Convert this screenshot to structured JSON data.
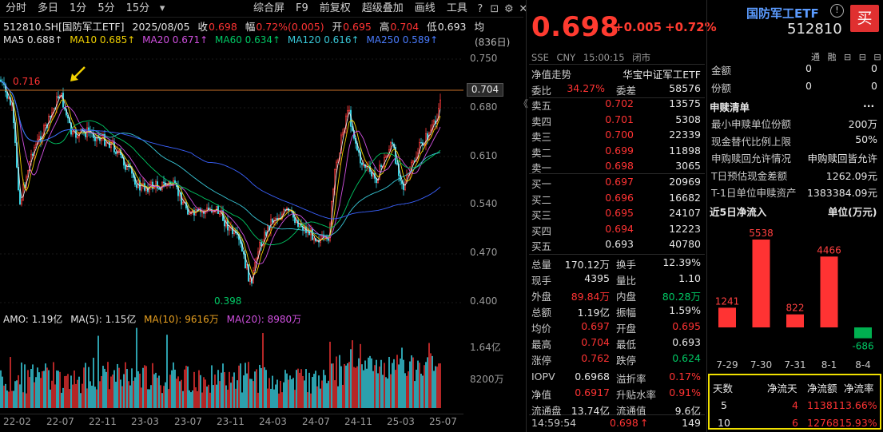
{
  "toolbar": {
    "left": [
      "分时",
      "多日",
      "1分",
      "5分",
      "15分"
    ],
    "dropdown_icon": "chevron-down-icon",
    "right": [
      "综合屏",
      "F9",
      "前复权",
      "超级叠加",
      "画线",
      "工具"
    ]
  },
  "info": {
    "code_name": "512810.SH[国防军工ETF]",
    "date": "2025/08/05",
    "close_label": "收",
    "close": "0.698",
    "change_label": "幅",
    "change": "0.72%(0.005)",
    "open_label": "开",
    "open": "0.695",
    "high_label": "高",
    "high": "0.704",
    "low_label": "低",
    "low": "0.693",
    "avg_label": "均"
  },
  "ma": {
    "ma5": "MA5 0.688↑",
    "ma10": "MA10 0.685↑",
    "ma20": "MA20 0.671↑",
    "ma60": "MA60 0.634↑",
    "ma120": "MA120 0.616↑",
    "ma250": "MA250 0.589↑",
    "page": "(836日)"
  },
  "yaxis_price": [
    "0.750",
    "0.680",
    "0.610",
    "0.540",
    "0.470",
    "0.400"
  ],
  "current_price_tag": "0.704",
  "high_marker": "0.716",
  "low_marker": "0.398",
  "amo": {
    "amo": "AMO: 1.19亿",
    "ma5": "MA(5): 1.15亿",
    "ma10": "MA(10): 9616万",
    "ma20": "MA(20): 8980万"
  },
  "yaxis_vol": [
    "1.64亿",
    "8200万"
  ],
  "xaxis": [
    "22-02",
    "22-07",
    "22-11",
    "23-03",
    "23-07",
    "23-11",
    "24-03",
    "24-07",
    "24-11",
    "25-03",
    "25-07"
  ],
  "quote": {
    "price": "0.698",
    "change": "+0.005",
    "change_pct": "+0.72%",
    "sub": [
      "SSE",
      "CNY",
      "15:00:15",
      "闭市"
    ],
    "nav_trend_label": "净值走势",
    "index_label": "华宝中证军工ETF",
    "weibi_label": "委比",
    "weibi": "34.27%",
    "weicha_label": "委差",
    "weicha": "58576"
  },
  "asks": [
    {
      "label": "卖五",
      "price": "0.702",
      "vol": "13575"
    },
    {
      "label": "卖四",
      "price": "0.701",
      "vol": "5308"
    },
    {
      "label": "卖三",
      "price": "0.700",
      "vol": "22339"
    },
    {
      "label": "卖二",
      "price": "0.699",
      "vol": "11898"
    },
    {
      "label": "卖一",
      "price": "0.698",
      "vol": "3065"
    }
  ],
  "bids": [
    {
      "label": "买一",
      "price": "0.697",
      "vol": "20969"
    },
    {
      "label": "买二",
      "price": "0.696",
      "vol": "16682"
    },
    {
      "label": "买三",
      "price": "0.695",
      "vol": "24107"
    },
    {
      "label": "买四",
      "price": "0.694",
      "vol": "12223"
    },
    {
      "label": "买五",
      "price": "0.693",
      "vol": "40780"
    }
  ],
  "stats": [
    {
      "l1": "总量",
      "v1": "170.12万",
      "l2": "换手",
      "v2": "12.39%"
    },
    {
      "l1": "现手",
      "v1": "4395",
      "l2": "量比",
      "v2": "1.10"
    },
    {
      "l1": "外盘",
      "v1": "89.84万",
      "l2": "内盘",
      "v2": "80.28万"
    },
    {
      "l1": "总额",
      "v1": "1.19亿",
      "l2": "振幅",
      "v2": "1.59%"
    },
    {
      "l1": "均价",
      "v1": "0.697",
      "l2": "开盘",
      "v2": "0.695"
    },
    {
      "l1": "最高",
      "v1": "0.704",
      "l2": "最低",
      "v2": "0.693"
    },
    {
      "l1": "涨停",
      "v1": "0.762",
      "l2": "跌停",
      "v2": "0.624"
    },
    {
      "l1": "IOPV",
      "v1": "0.6968",
      "l2": "溢折率",
      "v2": "0.17%"
    },
    {
      "l1": "净值",
      "v1": "0.6917",
      "l2": "升贴水率",
      "v2": "0.91%"
    },
    {
      "l1": "流通盘",
      "v1": "13.74亿",
      "l2": "流通值",
      "v2": "9.6亿"
    }
  ],
  "last_tick": {
    "time": "14:59:54",
    "price": "0.698",
    "arrow": "↑",
    "vol": "149"
  },
  "side_tab": "《",
  "etf": {
    "name": "国防军工ETF",
    "code": "512810",
    "buy_label": "买",
    "tool_icons": "通 融 ⊟ ⊟ ⊟"
  },
  "amount_rows": [
    {
      "label": "金额",
      "a": "0",
      "b": "0"
    },
    {
      "label": "份额",
      "a": "0",
      "b": "0"
    }
  ],
  "subscription": {
    "title": "申赎清单",
    "more": "...",
    "rows": [
      {
        "l": "最小申赎单位份额",
        "r": "200万"
      },
      {
        "l": "现金替代比例上限",
        "r": "50%"
      },
      {
        "l": "申购赎回允许情况",
        "r": "申购赎回皆允许"
      },
      {
        "l": "T日预估现金差额",
        "r": "1262.09元"
      },
      {
        "l": "T-1日单位申赎资产",
        "r": "1383384.09元"
      }
    ]
  },
  "flow": {
    "title": "近5日净流入",
    "unit": "单位(万元)",
    "colors": {
      "pos": "#ff3333",
      "neg": "#00b050"
    }
  },
  "chart_data": {
    "type": "bar",
    "title": "近5日净流入",
    "ylabel": "单位(万元)",
    "categories": [
      "7-29",
      "7-30",
      "7-31",
      "8-1",
      "8-4"
    ],
    "values": [
      1241,
      5538,
      822,
      4466,
      -686
    ]
  },
  "netflow_table": {
    "headers": [
      "天数",
      "净流天",
      "净流额",
      "净流率"
    ],
    "rows": [
      {
        "days": "5",
        "d": "4",
        "amt": "11381",
        "rate": "13.66%"
      },
      {
        "days": "10",
        "d": "6",
        "amt": "12768",
        "rate": "15.93%"
      }
    ]
  }
}
